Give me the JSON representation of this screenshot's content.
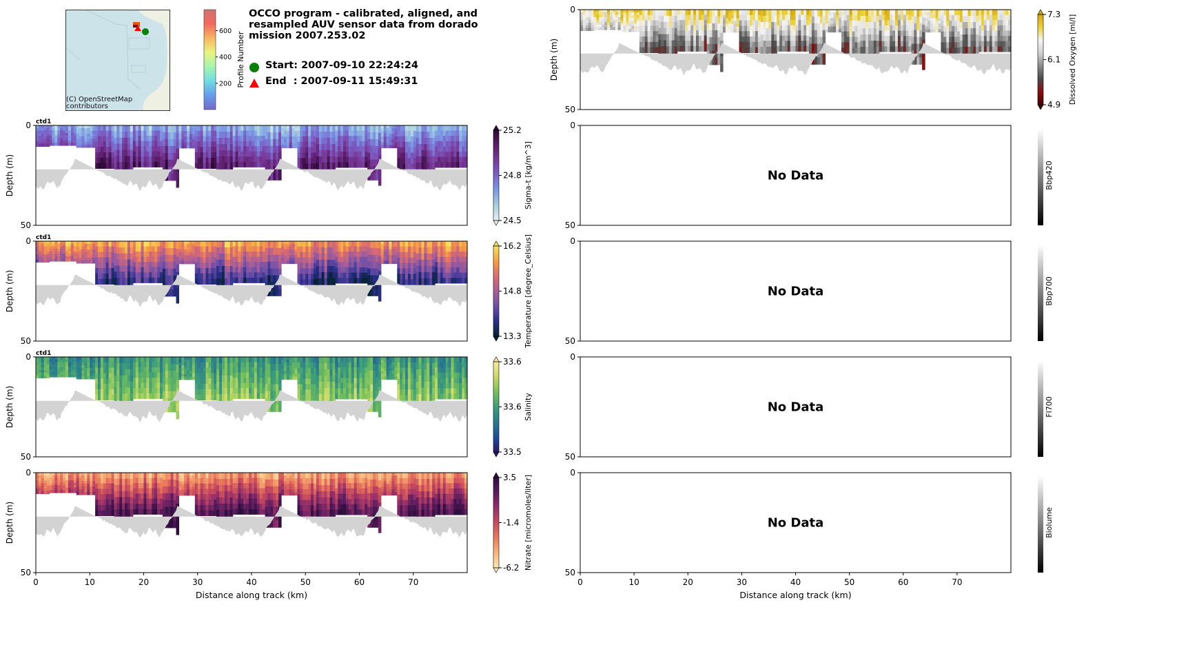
{
  "header": {
    "title": "OCCO program - calibrated, aligned, and resampled AUV sensor data from dorado mission 2007.253.02",
    "start_label": "Start: 2007-09-10 22:24:24",
    "end_label": "End  : 2007-09-11 15:49:31",
    "start_marker_color": "#008000",
    "end_marker_color": "#ff0000"
  },
  "map": {
    "attribution": "(C) OpenStreetMap contributors",
    "colorbar_label": "Profile Number",
    "colorbar_ticks": [
      "200",
      "400",
      "600"
    ],
    "colorbar_tick_values": [
      200,
      400,
      600
    ],
    "colorbar_range": [
      0,
      760
    ]
  },
  "chart_data": [
    {
      "type": "heatmap",
      "id": "sigma_t",
      "instrument": "ctd1",
      "ylabel": "Depth (m)",
      "xlabel": "",
      "ylim": [
        50,
        0
      ],
      "xlim": [
        0,
        80
      ],
      "yticks": [
        "0",
        "50"
      ],
      "xticks": [],
      "colorbar": {
        "label": "Sigma-t [kg/m^3]",
        "ticks": [
          "25.2",
          "24.8",
          "24.5"
        ],
        "range": [
          24.5,
          25.2
        ],
        "colormap": "dense",
        "extend": "both",
        "colors": [
          "#e6f1f1",
          "#a9cfe0",
          "#7b9de6",
          "#7a63c9",
          "#7a3c9c",
          "#5c1e6b",
          "#2b0b33"
        ]
      },
      "surface_color_index": 0.25,
      "deep_color_index": 0.8
    },
    {
      "type": "heatmap",
      "id": "temperature",
      "instrument": "ctd1",
      "ylabel": "Depth (m)",
      "xlabel": "",
      "ylim": [
        50,
        0
      ],
      "xlim": [
        0,
        80
      ],
      "yticks": [
        "0",
        "50"
      ],
      "xticks": [],
      "colorbar": {
        "label": "Temperature [degree_Celsius]",
        "ticks": [
          "16.2",
          "14.8",
          "13.3"
        ],
        "range": [
          13.3,
          16.2
        ],
        "colormap": "thermal",
        "extend": "both",
        "colors": [
          "#04232e",
          "#2b2f8a",
          "#6e4fa8",
          "#a85f98",
          "#de6b6c",
          "#f7a144",
          "#f5e35c"
        ]
      },
      "surface_color_index": 0.85,
      "deep_color_index": 0.15
    },
    {
      "type": "heatmap",
      "id": "salinity",
      "instrument": "ctd1",
      "ylabel": "Depth (m)",
      "xlabel": "",
      "ylim": [
        50,
        0
      ],
      "xlim": [
        0,
        80
      ],
      "yticks": [
        "0",
        "50"
      ],
      "xticks": [],
      "colorbar": {
        "label": "Salinity",
        "ticks": [
          "33.6",
          "33.6",
          "33.5"
        ],
        "range": [
          33.5,
          33.6
        ],
        "colormap": "haline",
        "extend": "both",
        "colors": [
          "#2a186c",
          "#1f4e9b",
          "#2a7a8e",
          "#3d9e79",
          "#79c15a",
          "#c9d96a",
          "#f8ea9a"
        ]
      },
      "surface_color_index": 0.45,
      "deep_color_index": 0.7
    },
    {
      "type": "heatmap",
      "id": "nitrate",
      "instrument": "",
      "ylabel": "Depth (m)",
      "xlabel": "Distance along track (km)",
      "ylim": [
        50,
        0
      ],
      "xlim": [
        0,
        80
      ],
      "yticks": [
        "0",
        "50"
      ],
      "xticks": [
        "0",
        "10",
        "20",
        "30",
        "40",
        "50",
        "60",
        "70"
      ],
      "colorbar": {
        "label": "Nitrate [micromoles/liter]",
        "ticks": [
          "3.5",
          "-1.4",
          "-6.2"
        ],
        "range": [
          -6.2,
          3.5
        ],
        "colormap": "matter",
        "extend": "both",
        "colors": [
          "#fde9b1",
          "#f7b57a",
          "#ea7a5c",
          "#c84b5e",
          "#96306a",
          "#5b1d5e",
          "#2f0f3d"
        ]
      },
      "surface_color_index": 0.2,
      "deep_color_index": 0.9
    },
    {
      "type": "heatmap",
      "id": "dissolved_oxygen",
      "instrument": "",
      "ylabel": "Depth (m)",
      "xlabel": "",
      "ylim": [
        50,
        0
      ],
      "xlim": [
        0,
        80
      ],
      "yticks": [
        "0",
        "50"
      ],
      "xticks": [],
      "colorbar": {
        "label": "Dissolved Oxygen [ml/l]",
        "ticks": [
          "7.3",
          "6.1",
          "4.9"
        ],
        "range": [
          4.9,
          7.3
        ],
        "colormap": "oxy",
        "extend": "both",
        "colors": [
          "#400505",
          "#8b0d0d",
          "#4a4a4a",
          "#8a8a8a",
          "#d2d2d2",
          "#f4f4f4",
          "#ecd23a",
          "#d4a80f"
        ]
      },
      "surface_color_index": 0.85,
      "deep_color_index": 0.35
    },
    {
      "type": "heatmap",
      "id": "bbp420",
      "ylabel": "",
      "ylim": [
        50,
        0
      ],
      "xlim": [
        0,
        80
      ],
      "yticks": [
        "0",
        "50"
      ],
      "xticks": [],
      "no_data": "No Data",
      "colorbar": {
        "label": "Bbp420",
        "ticks": [],
        "colormap": "gray"
      }
    },
    {
      "type": "heatmap",
      "id": "bbp700",
      "ylabel": "",
      "ylim": [
        50,
        0
      ],
      "xlim": [
        0,
        80
      ],
      "yticks": [
        "0",
        "50"
      ],
      "xticks": [],
      "no_data": "No Data",
      "colorbar": {
        "label": "Bbp700",
        "ticks": [],
        "colormap": "gray"
      }
    },
    {
      "type": "heatmap",
      "id": "fl700",
      "ylabel": "",
      "ylim": [
        50,
        0
      ],
      "xlim": [
        0,
        80
      ],
      "yticks": [
        "0",
        "50"
      ],
      "xticks": [],
      "no_data": "No Data",
      "colorbar": {
        "label": "Fl700",
        "ticks": [],
        "colormap": "gray"
      }
    },
    {
      "type": "heatmap",
      "id": "biolume",
      "ylabel": "",
      "ylim": [
        50,
        0
      ],
      "xlim": [
        0,
        80
      ],
      "yticks": [
        "0",
        "50"
      ],
      "xticks": [
        "0",
        "10",
        "20",
        "30",
        "40",
        "50",
        "60",
        "70"
      ],
      "xlabel": "Distance along track (km)",
      "no_data": "No Data",
      "colorbar": {
        "label": "Biolume",
        "ticks": [],
        "colormap": "gray"
      }
    }
  ],
  "track": {
    "xmax_km": 80,
    "sample_bottom_depth_segments_km_m": [
      [
        0,
        0.2,
        5
      ],
      [
        0.2,
        2.5,
        10.5
      ],
      [
        2.5,
        7.5,
        10
      ],
      [
        7.5,
        10.8,
        11
      ],
      [
        10.8,
        14.3,
        21.5
      ],
      [
        14.3,
        17.9,
        24.5
      ],
      [
        17.9,
        23.5,
        20.8
      ],
      [
        23.5,
        26.2,
        27.5
      ],
      [
        26.2,
        26.5,
        31
      ],
      [
        26.5,
        29.6,
        11.3
      ],
      [
        29.6,
        33.5,
        21.5
      ],
      [
        33.5,
        36.6,
        24.8
      ],
      [
        36.6,
        42.5,
        20.8
      ],
      [
        42.5,
        45.4,
        27.3
      ],
      [
        45.4,
        48.5,
        11.2
      ],
      [
        48.5,
        52.0,
        21.8
      ],
      [
        52.0,
        55.3,
        24.8
      ],
      [
        55.3,
        61.5,
        21.0
      ],
      [
        61.5,
        63.5,
        27.3
      ],
      [
        63.5,
        64.0,
        30
      ],
      [
        64.0,
        67.0,
        11.2
      ],
      [
        67.0,
        70.6,
        21.8
      ],
      [
        70.6,
        74.0,
        24.8
      ],
      [
        74.0,
        80,
        21.0
      ]
    ],
    "bathymetry_top_m": 22,
    "bathymetry_peaks_km": [
      7.5,
      26.5,
      45.5,
      64
    ],
    "bathymetry_color": "#d3d3d3"
  }
}
